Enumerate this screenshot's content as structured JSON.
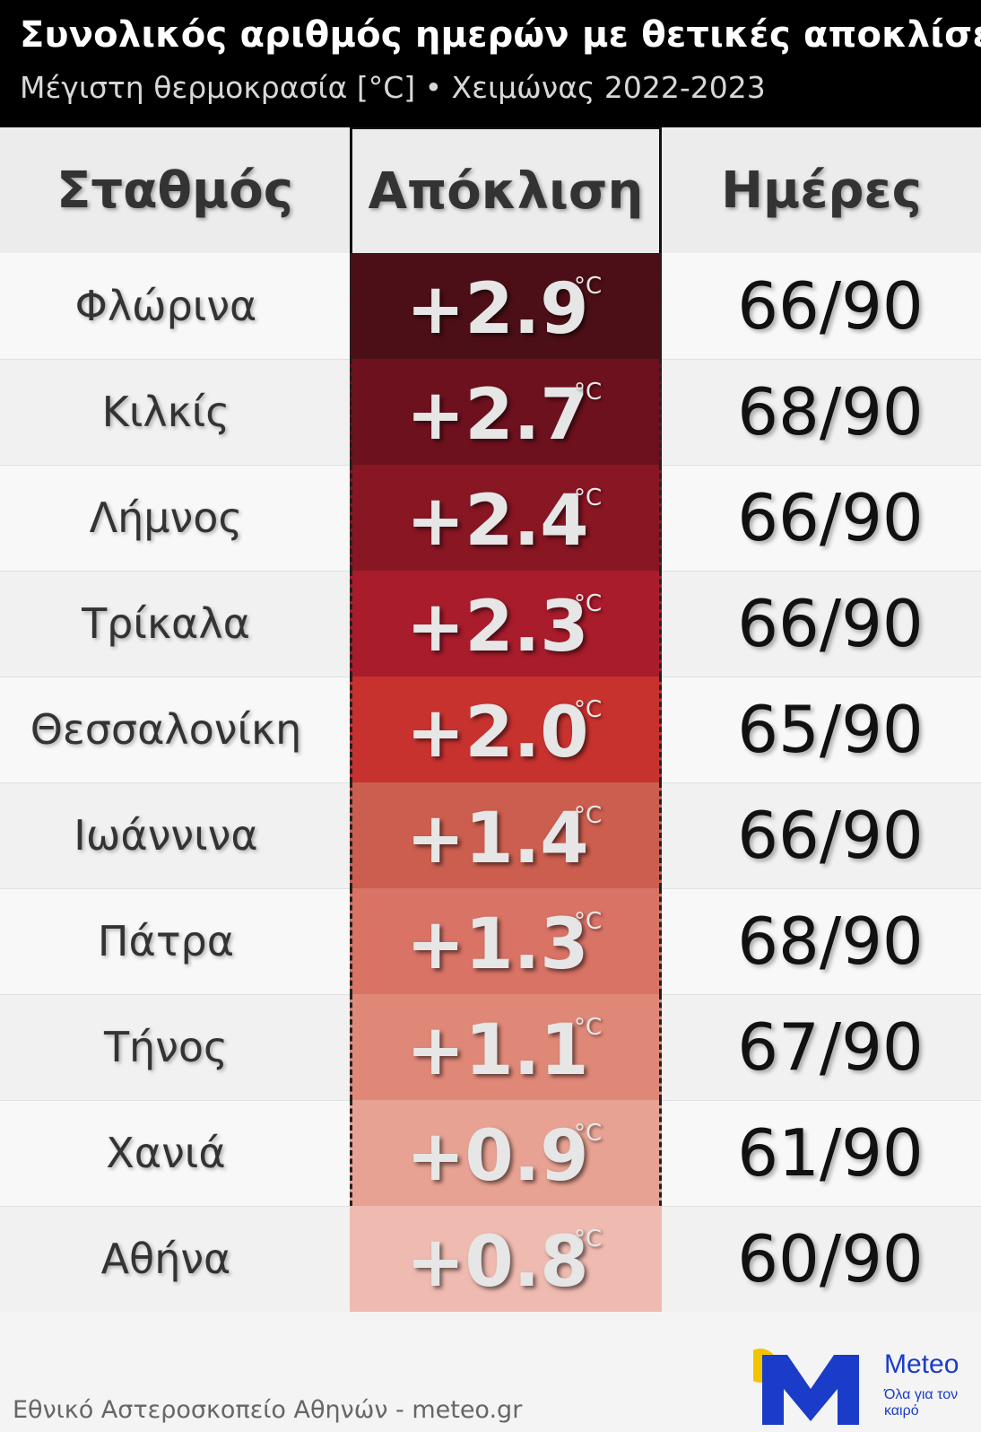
{
  "header": {
    "title": "Συνολικός αριθμός ημερών με θετικές αποκλίσεις",
    "subtitle": "Μέγιστη θερμοκρασία [°C] • Χειμώνας 2022-2023"
  },
  "columns": {
    "station": "Σταθμός",
    "anomaly": "Απόκλιση",
    "days": "Ημέρες"
  },
  "chart_data": {
    "type": "table",
    "title": "Συνολικός αριθμός ημερών με θετικές αποκλίσεις",
    "subtitle": "Μέγιστη θερμοκρασία [°C] • Χειμώνας 2022-2023",
    "columns": [
      "Σταθμός",
      "Απόκλιση",
      "Ημέρες"
    ],
    "unit": "°C",
    "rows": [
      {
        "station": "Φλώρινα",
        "anomaly": "+2.9",
        "anomaly_value": 2.9,
        "days": "66/90",
        "color": "#4d0f17"
      },
      {
        "station": "Κιλκίς",
        "anomaly": "+2.7",
        "anomaly_value": 2.7,
        "days": "68/90",
        "color": "#6e111e"
      },
      {
        "station": "Λήμνος",
        "anomaly": "+2.4",
        "anomaly_value": 2.4,
        "days": "66/90",
        "color": "#881623"
      },
      {
        "station": "Τρίκαλα",
        "anomaly": "+2.3",
        "anomaly_value": 2.3,
        "days": "66/90",
        "color": "#a81c2c"
      },
      {
        "station": "Θεσσαλονίκη",
        "anomaly": "+2.0",
        "anomaly_value": 2.0,
        "days": "65/90",
        "color": "#c7322f"
      },
      {
        "station": "Ιωάννινα",
        "anomaly": "+1.4",
        "anomaly_value": 1.4,
        "days": "66/90",
        "color": "#cc5e4f"
      },
      {
        "station": "Πάτρα",
        "anomaly": "+1.3",
        "anomaly_value": 1.3,
        "days": "68/90",
        "color": "#d87366"
      },
      {
        "station": "Τήνος",
        "anomaly": "+1.1",
        "anomaly_value": 1.1,
        "days": "67/90",
        "color": "#e08878"
      },
      {
        "station": "Χανιά",
        "anomaly": "+0.9",
        "anomaly_value": 0.9,
        "days": "61/90",
        "color": "#e8a293"
      },
      {
        "station": "Αθήνα",
        "anomaly": "+0.8",
        "anomaly_value": 0.8,
        "days": "60/90",
        "color": "#efbab0"
      }
    ]
  },
  "footer": {
    "source": "Εθνικό Αστεροσκοπείο Αθηνών - meteo.gr",
    "logo_name": "Meteo",
    "logo_tagline": "Όλα για τον καιρό"
  },
  "colors": {
    "header_bg": "#000000",
    "logo_blue": "#1a3cc8",
    "logo_sun": "#f5c400"
  }
}
